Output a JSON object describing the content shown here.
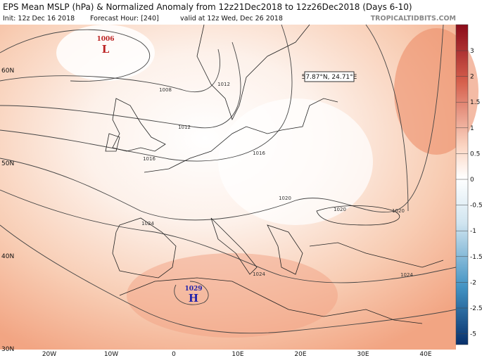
{
  "header": {
    "title": "EPS Mean MSLP (hPa) & Normalized Anomaly from 12z21Dec2018 to 12z26Dec2018 (Days 6-10)",
    "init": "Init: 12z Dec 16 2018",
    "forecast_hour": "Forecast Hour: [240]",
    "valid": "valid at 12z Wed, Dec 26 2018",
    "site": "TROPICALTIDBITS.COM"
  },
  "map": {
    "lat_labels": [
      "60N",
      "50N",
      "40N",
      "30N"
    ],
    "lon_labels": [
      "20W",
      "10W",
      "0",
      "10E",
      "20E",
      "30E",
      "40E"
    ],
    "centers": [
      {
        "value": "1006",
        "symbol": "L"
      },
      {
        "value": "1029",
        "symbol": "H"
      }
    ],
    "isobar_labels": [
      "1008",
      "1012",
      "1012",
      "1016",
      "1016",
      "1020",
      "1020",
      "1020",
      "1024",
      "1024",
      "1024"
    ],
    "tooltip": "57.87°N, 24.71°E"
  },
  "colorbar": {
    "ticks": [
      3,
      2,
      1.5,
      1,
      0.5,
      0,
      -0.5,
      -1,
      -1.5,
      -2,
      -2.5,
      -5
    ]
  }
}
